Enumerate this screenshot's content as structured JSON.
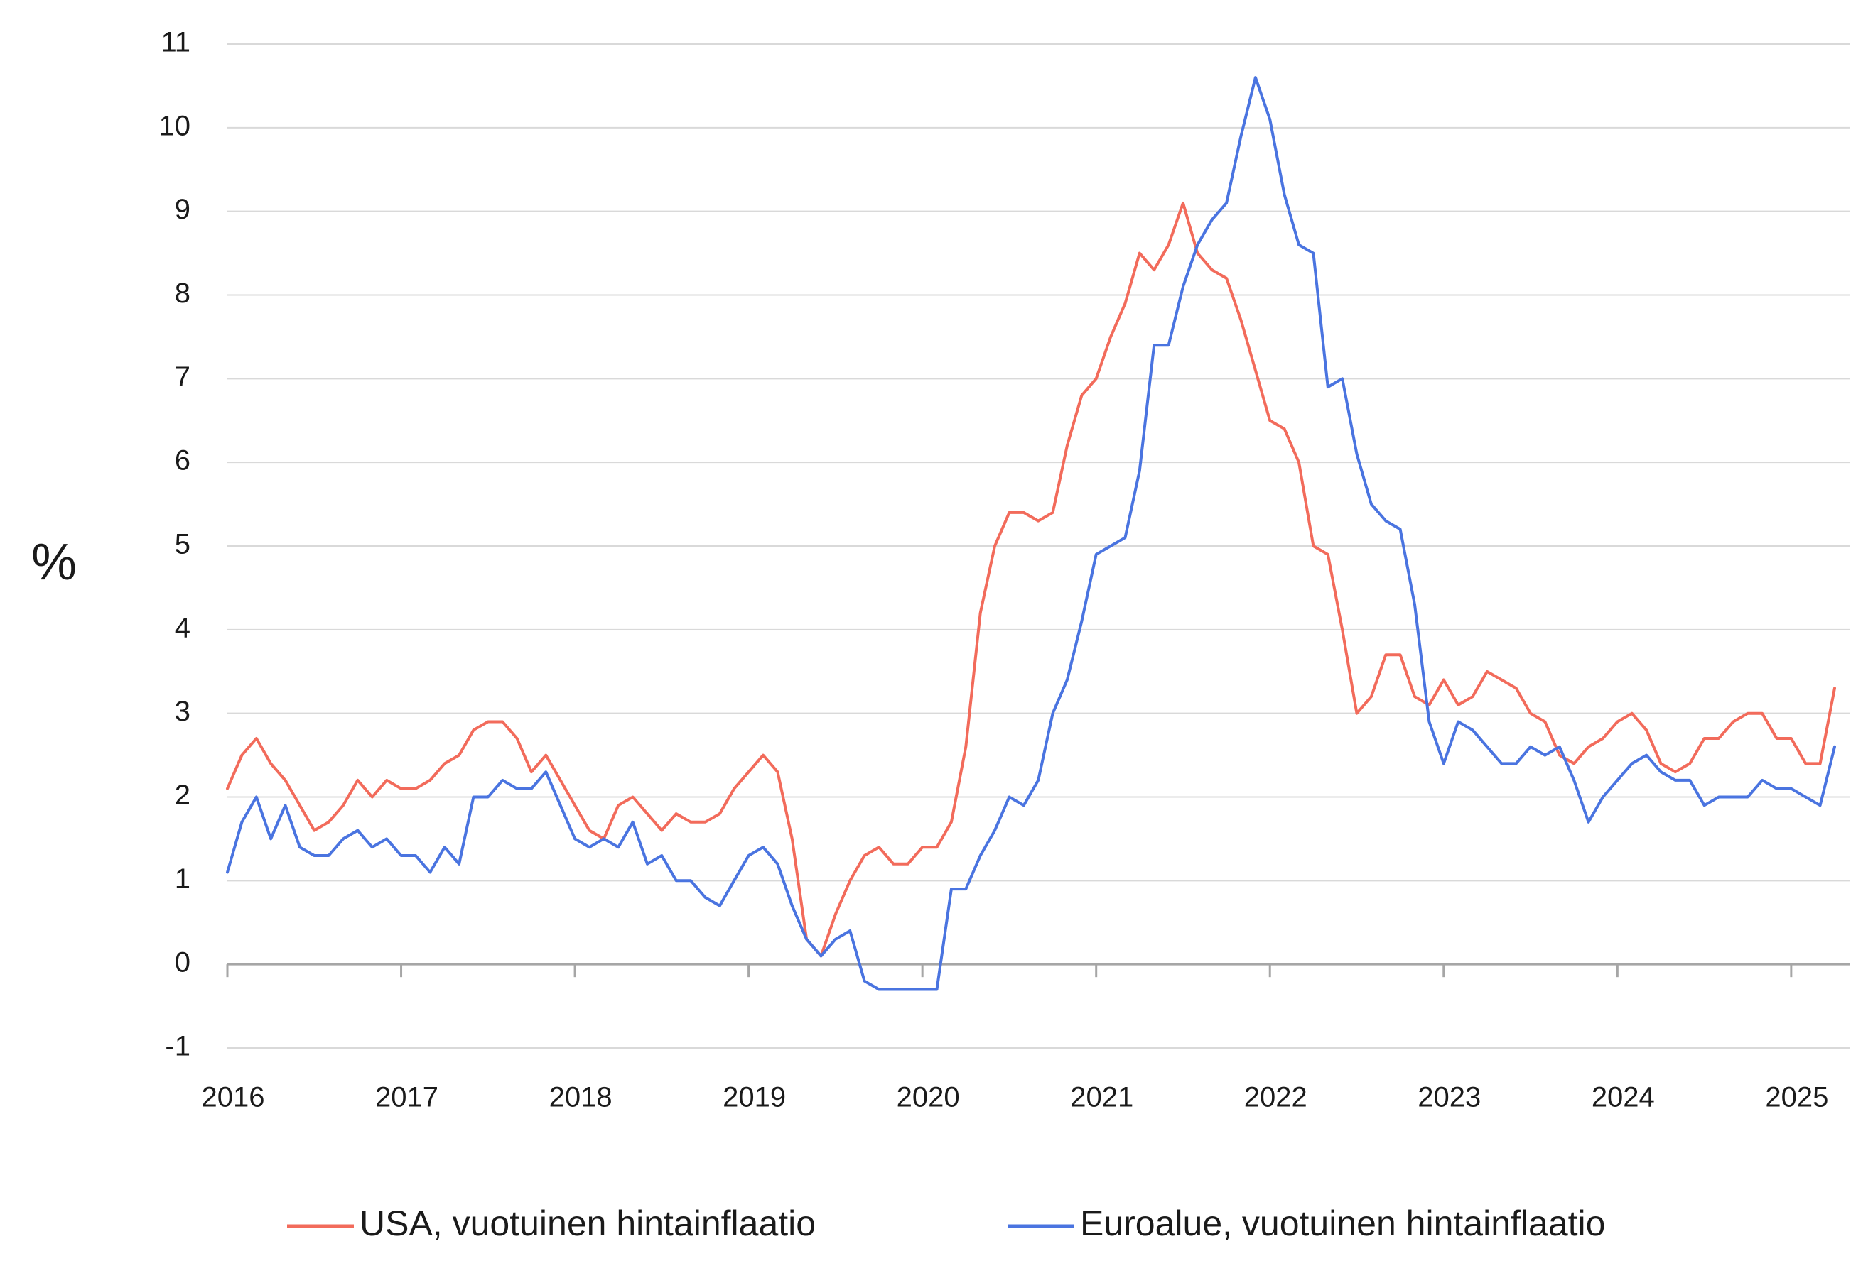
{
  "chart_data": {
    "type": "line",
    "title": "",
    "xlabel": "",
    "ylabel": "%",
    "ylim": [
      -1,
      11
    ],
    "xlim": [
      2016,
      2025.34
    ],
    "yticks": [
      -1,
      0,
      1,
      2,
      3,
      4,
      5,
      6,
      7,
      8,
      9,
      10,
      11
    ],
    "xticks": [
      2016,
      2017,
      2018,
      2019,
      2020,
      2021,
      2022,
      2023,
      2024,
      2025
    ],
    "grid": "horizontal",
    "legend_position": "bottom",
    "start_year": 2016,
    "x_step_years": 0.0833333,
    "series": [
      {
        "name": "USA, vuotuinen hintainflaatio",
        "color": "#F26B5B",
        "values": [
          2.1,
          2.5,
          2.7,
          2.4,
          2.2,
          1.9,
          1.6,
          1.7,
          1.9,
          2.2,
          2.0,
          2.2,
          2.1,
          2.1,
          2.2,
          2.4,
          2.5,
          2.8,
          2.9,
          2.9,
          2.7,
          2.3,
          2.5,
          2.2,
          1.9,
          1.6,
          1.5,
          1.9,
          2.0,
          1.8,
          1.6,
          1.8,
          1.7,
          1.7,
          1.8,
          2.1,
          2.3,
          2.5,
          2.3,
          1.5,
          0.3,
          0.1,
          0.6,
          1.0,
          1.3,
          1.4,
          1.2,
          1.2,
          1.4,
          1.4,
          1.7,
          2.6,
          4.2,
          5.0,
          5.4,
          5.4,
          5.3,
          5.4,
          6.2,
          6.8,
          7.0,
          7.5,
          7.9,
          8.5,
          8.3,
          8.6,
          9.1,
          8.5,
          8.3,
          8.2,
          7.7,
          7.1,
          6.5,
          6.4,
          6.0,
          5.0,
          4.9,
          4.0,
          3.0,
          3.2,
          3.7,
          3.7,
          3.2,
          3.1,
          3.4,
          3.1,
          3.2,
          3.5,
          3.4,
          3.3,
          3.0,
          2.9,
          2.5,
          2.4,
          2.6,
          2.7,
          2.9,
          3.0,
          2.8,
          2.4,
          2.3,
          2.4,
          2.7,
          2.7,
          2.9,
          3.0,
          3.0,
          2.7,
          2.7,
          2.4,
          2.4,
          3.3
        ]
      },
      {
        "name": "Euroalue, vuotuinen hintainflaatio",
        "color": "#4A74E0",
        "values": [
          1.1,
          1.7,
          2.0,
          1.5,
          1.9,
          1.4,
          1.3,
          1.3,
          1.5,
          1.6,
          1.4,
          1.5,
          1.3,
          1.3,
          1.1,
          1.4,
          1.2,
          2.0,
          2.0,
          2.2,
          2.1,
          2.1,
          2.3,
          1.9,
          1.5,
          1.4,
          1.5,
          1.4,
          1.7,
          1.2,
          1.3,
          1.0,
          1.0,
          0.8,
          0.7,
          1.0,
          1.3,
          1.4,
          1.2,
          0.7,
          0.3,
          0.1,
          0.3,
          0.4,
          -0.2,
          -0.3,
          -0.3,
          -0.3,
          -0.3,
          -0.3,
          0.9,
          0.9,
          1.3,
          1.6,
          2.0,
          1.9,
          2.2,
          3.0,
          3.4,
          4.1,
          4.9,
          5.0,
          5.1,
          5.9,
          7.4,
          7.4,
          8.1,
          8.6,
          8.9,
          9.1,
          9.9,
          10.6,
          10.1,
          9.2,
          8.6,
          8.5,
          6.9,
          7.0,
          6.1,
          5.5,
          5.3,
          5.2,
          4.3,
          2.9,
          2.4,
          2.9,
          2.8,
          2.6,
          2.4,
          2.4,
          2.6,
          2.5,
          2.6,
          2.2,
          1.7,
          2.0,
          2.2,
          2.4,
          2.5,
          2.3,
          2.2,
          2.2,
          1.9,
          2.0,
          2.0,
          2.0,
          2.2,
          2.1,
          2.1,
          2.0,
          1.9,
          2.6
        ]
      }
    ]
  }
}
